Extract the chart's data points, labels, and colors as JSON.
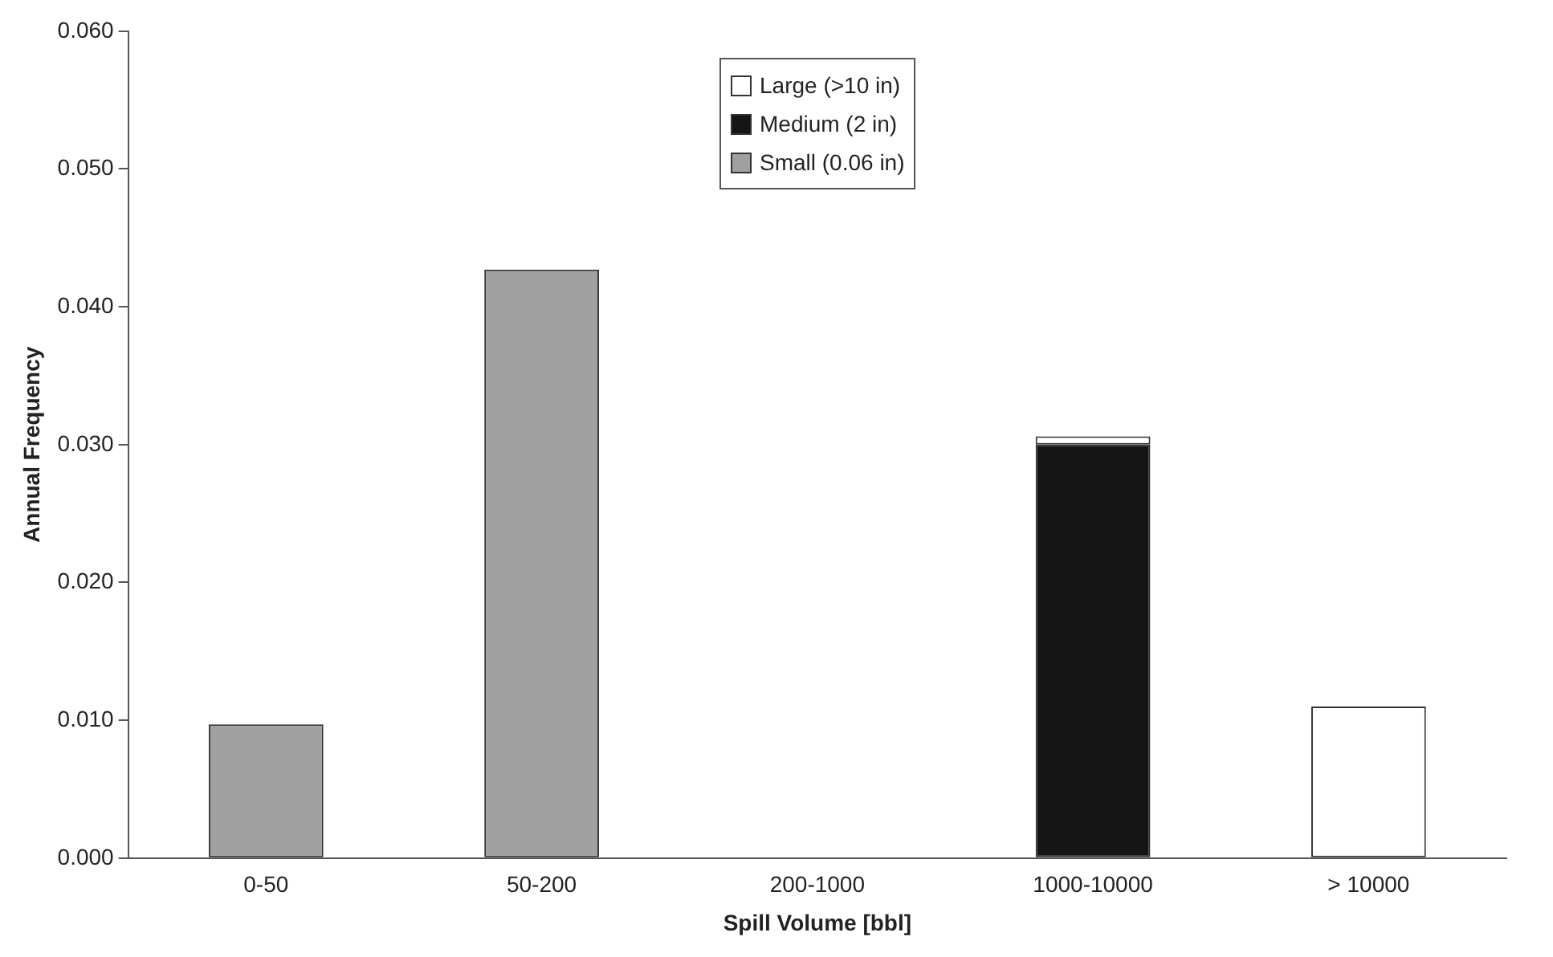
{
  "chart_data": {
    "type": "bar",
    "stacked": true,
    "xlabel": "Spill Volume [bbl]",
    "ylabel": "Annual Frequency",
    "categories": [
      "0-50",
      "50-200",
      "200-1000",
      "1000-10000",
      "> 10000"
    ],
    "series": [
      {
        "name": "Small (0.06 in)",
        "color": "#a0a0a0",
        "values": [
          0.0097,
          0.0427,
          null,
          null,
          null
        ]
      },
      {
        "name": "Medium (2 in)",
        "color": "#151515",
        "values": [
          null,
          null,
          null,
          0.03,
          null
        ]
      },
      {
        "name": "Large (>10 in)",
        "color": "#ffffff",
        "values": [
          null,
          null,
          null,
          0.0006,
          0.011
        ]
      }
    ],
    "ylim": [
      0,
      0.06
    ],
    "yticks": [
      {
        "value": 0,
        "label": "0.000"
      },
      {
        "value": 0.01,
        "label": "0.010"
      },
      {
        "value": 0.02,
        "label": "0.020"
      },
      {
        "value": 0.03,
        "label": "0.030"
      },
      {
        "value": 0.04,
        "label": "0.040"
      },
      {
        "value": 0.05,
        "label": "0.050"
      },
      {
        "value": 0.06,
        "label": "0.060"
      }
    ],
    "legend": "top",
    "grid": false
  }
}
